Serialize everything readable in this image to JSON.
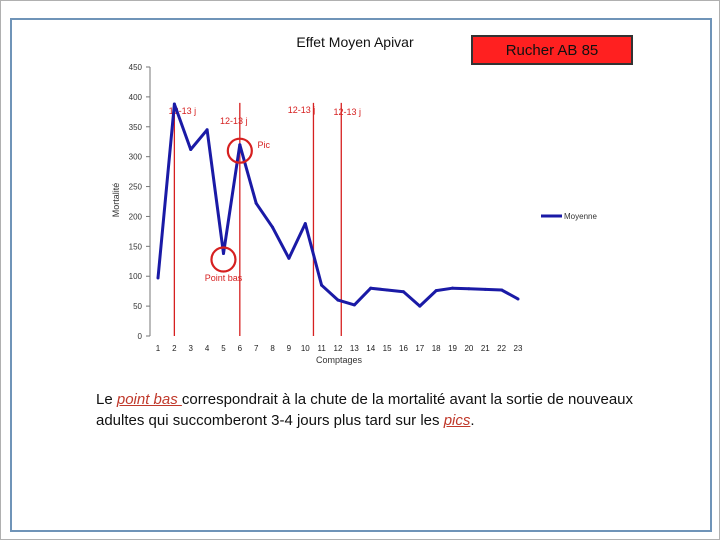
{
  "chart_data": {
    "type": "line",
    "title": "Effet Moyen Apivar",
    "xlabel": "Comptages",
    "ylabel": "Mortalité",
    "ylim": [
      0,
      450
    ],
    "yticks": [
      0,
      50,
      100,
      150,
      200,
      250,
      300,
      350,
      400,
      450
    ],
    "categories": [
      "1",
      "2",
      "3",
      "4",
      "5",
      "6",
      "7",
      "8",
      "9",
      "10",
      "11",
      "12",
      "13",
      "14",
      "15",
      "16",
      "17",
      "18",
      "19",
      "20",
      "21",
      "22",
      "23"
    ],
    "series": [
      {
        "name": "Moyenne",
        "values": [
          97,
          388,
          312,
          345,
          138,
          320,
          222,
          182,
          130,
          188,
          85,
          60,
          52,
          80,
          77,
          74,
          50,
          76,
          80,
          79,
          78,
          77,
          62
        ]
      }
    ],
    "legend_position": "right",
    "grid": false,
    "vertical_markers": [
      {
        "label": "12-13 j",
        "x": 2
      },
      {
        "label": "12-13 j",
        "x": 6
      },
      {
        "label": "12-13 j",
        "x": 10.5
      },
      {
        "label": "12-13 j",
        "x": 12.2
      }
    ],
    "annotations": [
      {
        "label": "Pic",
        "x": 6,
        "y": 320
      },
      {
        "label": "Point bas",
        "x": 5,
        "y": 138
      }
    ]
  },
  "badge": {
    "label": "Rucher AB 85"
  },
  "caption": {
    "part1": "Le ",
    "highlight1": "point bas ",
    "part2": "correspondrait à la chute de la mortalité avant la sortie de nouveaux adultes qui succomberont 3-4 jours plus tard sur les ",
    "highlight2": "pics",
    "part3": "."
  },
  "colors": {
    "series": "#1a1aa6",
    "markers": "#d62020",
    "frame": "#6f94b8",
    "badge": "#ff2020"
  }
}
